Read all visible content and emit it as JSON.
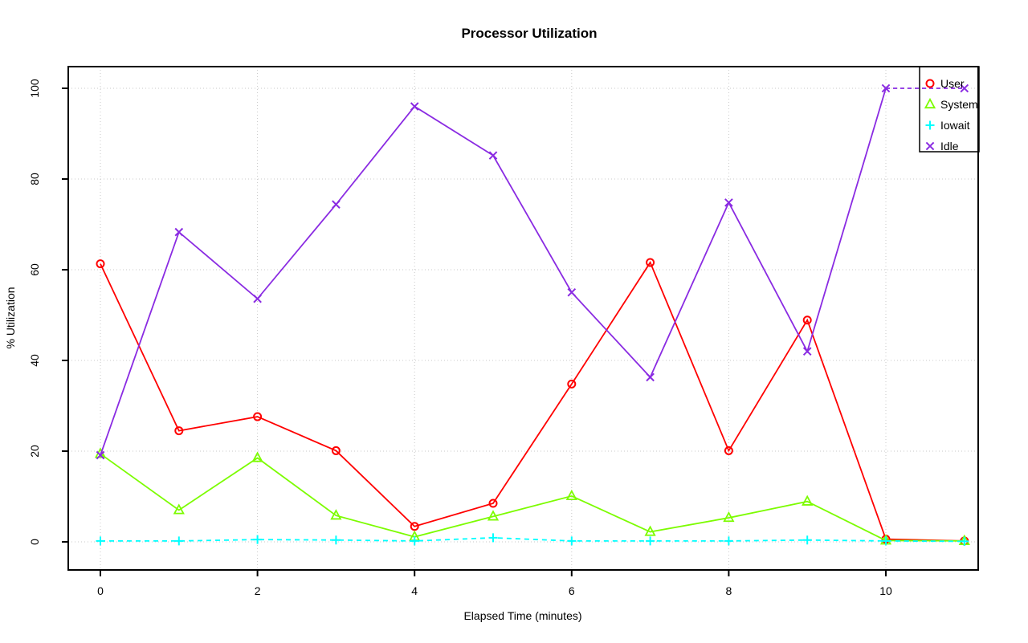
{
  "title": "Processor Utilization",
  "chart_data": {
    "type": "line",
    "title": "Processor Utilization",
    "xlabel": "Elapsed Time (minutes)",
    "ylabel": "% Utilization",
    "x": [
      0,
      1,
      2,
      3,
      4,
      5,
      6,
      7,
      8,
      9,
      10,
      11
    ],
    "x_ticks": [
      0,
      2,
      4,
      6,
      8,
      10
    ],
    "y_ticks": [
      0,
      20,
      40,
      60,
      80,
      100
    ],
    "xlim": [
      -0.4,
      11.2
    ],
    "ylim": [
      0,
      100
    ],
    "grid": true,
    "legend_position": "top-right",
    "series": [
      {
        "name": "User",
        "color": "#FF0000",
        "marker": "circle",
        "line": "solid",
        "values": [
          61.3,
          24.5,
          27.6,
          20.1,
          3.4,
          8.5,
          34.8,
          61.6,
          20.1,
          48.9,
          0.6,
          0.2
        ]
      },
      {
        "name": "System",
        "color": "#7CFC00",
        "marker": "triangle",
        "line": "solid",
        "values": [
          19.4,
          7.0,
          18.5,
          5.8,
          1.1,
          5.6,
          10.1,
          2.2,
          5.3,
          8.9,
          0.3,
          0.2
        ]
      },
      {
        "name": "Iowait",
        "color": "#00FFFF",
        "marker": "plus",
        "line": "dashed",
        "values": [
          0.2,
          0.2,
          0.5,
          0.4,
          0.2,
          0.9,
          0.2,
          0.2,
          0.2,
          0.4,
          0.2,
          0.1
        ]
      },
      {
        "name": "Idle",
        "color": "#8A2BE2",
        "marker": "x",
        "line": "solid",
        "final_segment_style": "dashed",
        "values": [
          19.1,
          68.3,
          53.6,
          74.4,
          96.0,
          85.2,
          55.0,
          36.3,
          74.8,
          42.0,
          100.0,
          100.0
        ]
      }
    ],
    "colors": {
      "grid": "#C8C8C8",
      "axis": "#000000",
      "background": "#FFFFFF"
    }
  }
}
